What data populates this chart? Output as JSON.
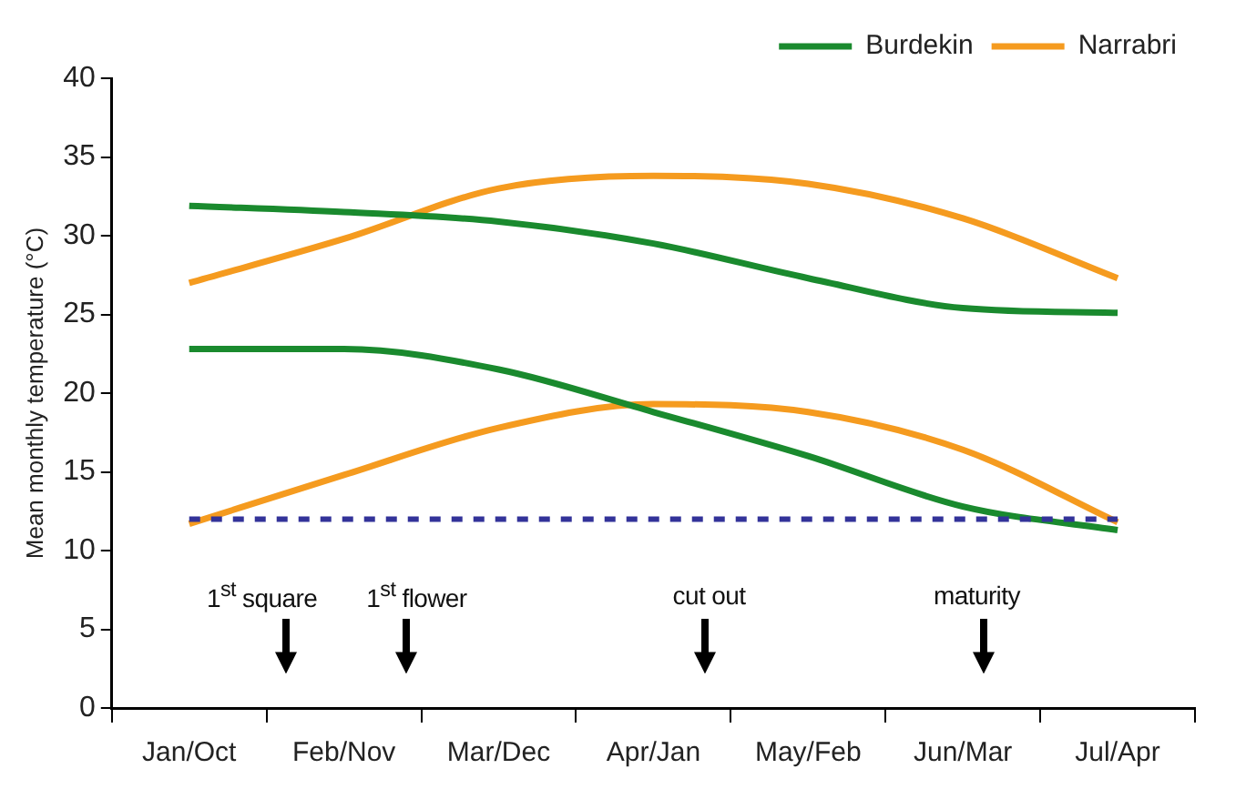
{
  "chart_data": {
    "type": "line",
    "ylabel": "Mean monthly temperature (°C)",
    "categories": [
      "Jan/Oct",
      "Feb/Nov",
      "Mar/Dec",
      "Apr/Jan",
      "May/Feb",
      "Jun/Mar",
      "Jul/Apr"
    ],
    "series": [
      {
        "name": "Burdekin",
        "color": "#1a8a2e",
        "values": [
          31.9,
          31.5,
          30.9,
          29.5,
          27.3,
          25.4,
          25.1
        ]
      },
      {
        "name": "Narrabri",
        "color": "#f59b1f",
        "values": [
          27.0,
          29.8,
          33.0,
          33.8,
          33.3,
          31.1,
          27.3
        ]
      },
      {
        "color": "#1a8a2e",
        "values": [
          22.8,
          22.8,
          21.5,
          18.8,
          16.0,
          12.8,
          11.3
        ]
      },
      {
        "color": "#f59b1f",
        "values": [
          11.7,
          14.8,
          17.8,
          19.3,
          18.8,
          16.4,
          11.8
        ]
      }
    ],
    "ylim": [
      0,
      40
    ],
    "yticks": [
      0,
      5,
      10,
      15,
      20,
      25,
      30,
      35,
      40
    ],
    "ref_lines": [
      {
        "axis": "y",
        "value": 12,
        "color": "#333399",
        "line_style": "dashed"
      }
    ],
    "annotations": [
      "1$^{st}$ square",
      "1$^{st}$ flower",
      "cut out",
      "maturity"
    ],
    "legend": "top right",
    "grid": false,
    "marker": "none",
    "line_style": "solid"
  }
}
